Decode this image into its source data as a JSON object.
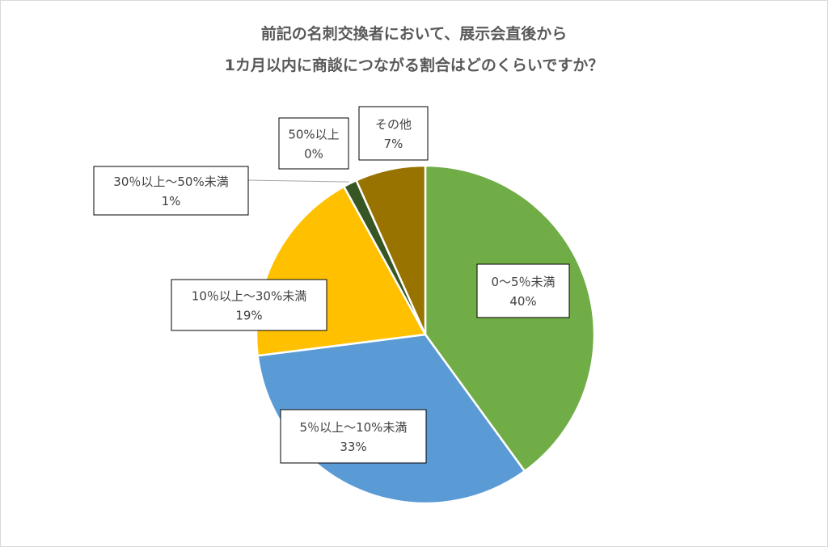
{
  "chart_data": {
    "type": "pie",
    "title": "前記の名刺交換者において、展示会直後から\n1カ月以内に商談につながる割合はどのくらいですか？",
    "title_lines": [
      "前記の名刺交換者において、展示会直後から",
      "1カ月以内に商談につながる割合はどのくらいですか？"
    ],
    "start_angle_deg": 0,
    "direction": "clockwise",
    "slices": [
      {
        "label": "0～5％未満",
        "value": 40,
        "display": "40%",
        "color": "#70ad47"
      },
      {
        "label": "5％以上～10%未満",
        "value": 33,
        "display": "33%",
        "color": "#5b9bd5"
      },
      {
        "label": "10％以上～30%未満",
        "value": 19,
        "display": "19%",
        "color": "#ffc000"
      },
      {
        "label": "30％以上～50%未満",
        "value": 1.3,
        "display": "1%",
        "color": "#375623"
      },
      {
        "label": "50%以上",
        "value": 0,
        "display": "0%",
        "color": "#264478"
      },
      {
        "label": "その他",
        "value": 6.7,
        "display": "7%",
        "color": "#997300"
      }
    ],
    "legend": "none"
  }
}
